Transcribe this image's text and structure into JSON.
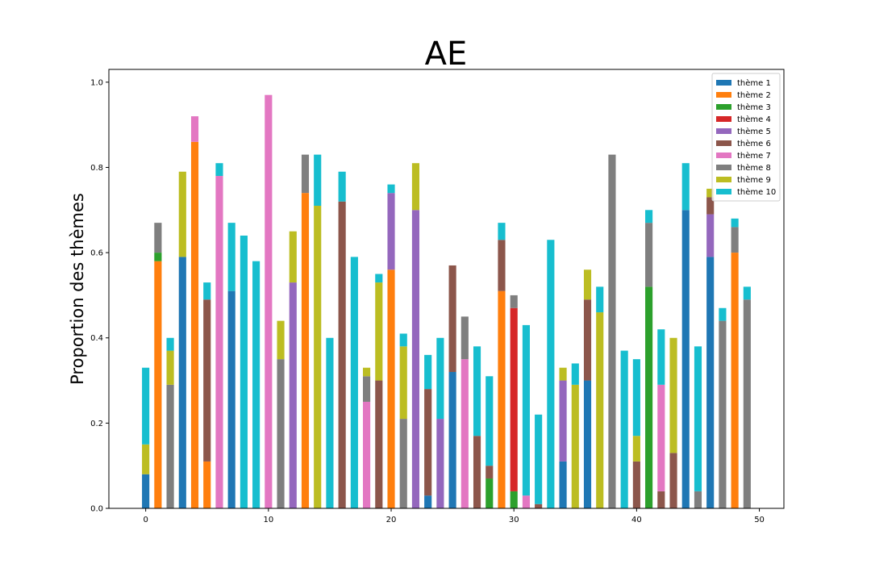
{
  "chart_data": {
    "type": "bar",
    "stacked": true,
    "title": "AE",
    "xlabel": "",
    "ylabel": "Proportion des thèmes",
    "xlim": [
      -3,
      52
    ],
    "ylim": [
      0,
      1.03
    ],
    "x_ticks": [
      0,
      10,
      20,
      30,
      40,
      50
    ],
    "y_ticks": [
      0.0,
      0.2,
      0.4,
      0.6,
      0.8,
      1.0
    ],
    "x_tick_labels": [
      "0",
      "10",
      "20",
      "30",
      "40",
      "50"
    ],
    "y_tick_labels": [
      "0.0",
      "0.2",
      "0.4",
      "0.6",
      "0.8",
      "1.0"
    ],
    "grid": false,
    "legend_position": "top-right",
    "categories": [
      0,
      1,
      2,
      3,
      4,
      5,
      6,
      7,
      8,
      9,
      10,
      11,
      12,
      13,
      14,
      15,
      16,
      17,
      18,
      19,
      20,
      21,
      22,
      23,
      24,
      25,
      26,
      27,
      28,
      29,
      30,
      31,
      32,
      33,
      34,
      35,
      36,
      37,
      38,
      39,
      40,
      41,
      42,
      43,
      44,
      45,
      46,
      47,
      48,
      49
    ],
    "series": [
      {
        "name": "thème 1",
        "color": "#1f77b4",
        "values": [
          0.08,
          0,
          0,
          0.59,
          0,
          0,
          0,
          0.51,
          0,
          0,
          0,
          0,
          0,
          0,
          0,
          0,
          0,
          0,
          0,
          0,
          0,
          0,
          0,
          0.03,
          0,
          0.32,
          0,
          0,
          0,
          0,
          0,
          0,
          0,
          0,
          0.11,
          0,
          0.3,
          0,
          0,
          0,
          0,
          0,
          0,
          0,
          0.7,
          0,
          0.59,
          0,
          0,
          0
        ]
      },
      {
        "name": "thème 2",
        "color": "#ff7f0e",
        "values": [
          0,
          0.58,
          0,
          0,
          0.86,
          0.11,
          0,
          0,
          0,
          0,
          0,
          0,
          0,
          0.74,
          0,
          0,
          0,
          0,
          0,
          0,
          0.56,
          0,
          0,
          0,
          0,
          0,
          0,
          0,
          0,
          0.51,
          0,
          0,
          0,
          0,
          0,
          0,
          0,
          0,
          0,
          0,
          0,
          0,
          0,
          0,
          0,
          0,
          0,
          0,
          0.6,
          0
        ]
      },
      {
        "name": "thème 3",
        "color": "#2ca02c",
        "values": [
          0,
          0.02,
          0,
          0,
          0,
          0,
          0,
          0,
          0,
          0,
          0,
          0,
          0,
          0,
          0,
          0,
          0,
          0,
          0,
          0,
          0,
          0,
          0,
          0,
          0,
          0,
          0,
          0,
          0.07,
          0,
          0.04,
          0,
          0,
          0,
          0,
          0,
          0,
          0,
          0,
          0,
          0,
          0.52,
          0,
          0,
          0,
          0,
          0,
          0,
          0,
          0
        ]
      },
      {
        "name": "thème 4",
        "color": "#d62728",
        "values": [
          0,
          0,
          0,
          0,
          0,
          0,
          0,
          0,
          0,
          0,
          0,
          0,
          0,
          0,
          0,
          0,
          0,
          0,
          0,
          0,
          0,
          0,
          0,
          0,
          0,
          0,
          0,
          0,
          0,
          0,
          0.43,
          0,
          0,
          0,
          0,
          0,
          0,
          0,
          0,
          0,
          0,
          0,
          0,
          0,
          0,
          0,
          0,
          0,
          0,
          0
        ]
      },
      {
        "name": "thème 5",
        "color": "#9467bd",
        "values": [
          0,
          0,
          0,
          0,
          0,
          0,
          0,
          0,
          0,
          0,
          0,
          0,
          0.53,
          0,
          0,
          0,
          0,
          0,
          0,
          0,
          0.18,
          0,
          0.7,
          0,
          0.21,
          0,
          0,
          0,
          0,
          0,
          0,
          0,
          0,
          0,
          0.19,
          0,
          0,
          0,
          0,
          0,
          0,
          0,
          0,
          0,
          0,
          0,
          0.1,
          0,
          0,
          0
        ]
      },
      {
        "name": "thème 6",
        "color": "#8c564b",
        "values": [
          0,
          0,
          0,
          0,
          0,
          0.38,
          0,
          0,
          0,
          0,
          0,
          0,
          0,
          0,
          0,
          0,
          0.72,
          0,
          0,
          0.3,
          0,
          0,
          0,
          0.25,
          0,
          0.25,
          0,
          0.17,
          0.03,
          0.12,
          0,
          0,
          0.01,
          0,
          0,
          0,
          0.19,
          0,
          0,
          0,
          0.11,
          0,
          0.04,
          0.13,
          0,
          0,
          0.04,
          0,
          0,
          0
        ]
      },
      {
        "name": "thème 7",
        "color": "#e377c2",
        "values": [
          0,
          0,
          0,
          0,
          0.06,
          0,
          0.78,
          0,
          0,
          0,
          0.97,
          0,
          0,
          0,
          0,
          0,
          0,
          0,
          0.25,
          0,
          0,
          0,
          0,
          0,
          0,
          0,
          0.35,
          0,
          0,
          0,
          0,
          0.03,
          0,
          0,
          0,
          0,
          0,
          0,
          0,
          0,
          0,
          0,
          0.25,
          0,
          0,
          0,
          0,
          0,
          0,
          0
        ]
      },
      {
        "name": "thème 8",
        "color": "#7f7f7f",
        "values": [
          0,
          0.07,
          0.29,
          0,
          0,
          0,
          0,
          0,
          0,
          0,
          0,
          0.35,
          0,
          0.09,
          0,
          0,
          0,
          0,
          0.06,
          0,
          0,
          0.21,
          0,
          0,
          0,
          0,
          0.1,
          0,
          0,
          0,
          0.03,
          0,
          0,
          0,
          0,
          0,
          0,
          0,
          0.83,
          0,
          0,
          0.15,
          0,
          0,
          0,
          0.04,
          0,
          0.44,
          0.06,
          0.49
        ]
      },
      {
        "name": "thème 9",
        "color": "#bcbd22",
        "values": [
          0.07,
          0,
          0.08,
          0.2,
          0,
          0,
          0,
          0,
          0,
          0,
          0,
          0.09,
          0.12,
          0,
          0.71,
          0,
          0,
          0,
          0.02,
          0.23,
          0,
          0.17,
          0.11,
          0,
          0,
          0,
          0,
          0,
          0,
          0,
          0,
          0,
          0,
          0,
          0.03,
          0.29,
          0.07,
          0.46,
          0,
          0,
          0.06,
          0,
          0,
          0.27,
          0,
          0,
          0.02,
          0,
          0,
          0
        ]
      },
      {
        "name": "thème 10",
        "color": "#17becf",
        "values": [
          0.18,
          0,
          0.03,
          0,
          0,
          0.04,
          0.03,
          0.16,
          0.64,
          0.58,
          0,
          0,
          0,
          0,
          0.12,
          0.4,
          0.07,
          0.59,
          0,
          0.02,
          0.02,
          0.03,
          0,
          0.08,
          0.19,
          0,
          0,
          0.21,
          0.21,
          0.04,
          0,
          0.4,
          0.21,
          0.63,
          0,
          0.05,
          0,
          0.06,
          0,
          0.37,
          0.18,
          0.03,
          0.13,
          0,
          0.11,
          0.34,
          0,
          0.03,
          0.02,
          0.03
        ]
      }
    ]
  }
}
